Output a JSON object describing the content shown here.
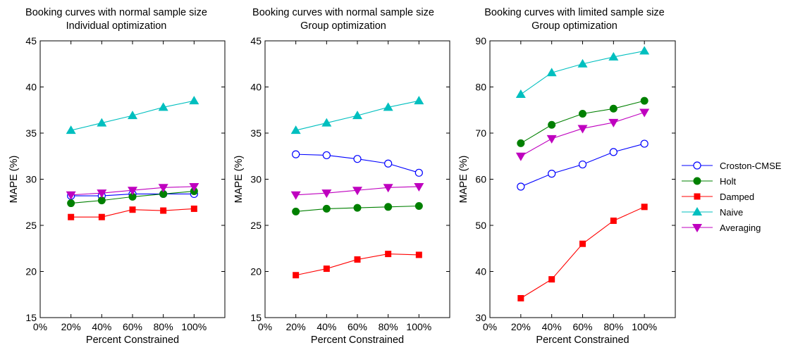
{
  "chart_data": [
    {
      "type": "line",
      "title": [
        "Booking curves with normal sample size",
        "Individual optimization"
      ],
      "xlabel": "Percent Constrained",
      "ylabel": "MAPE (%)",
      "x_ticks": [
        "0%",
        "20%",
        "40%",
        "60%",
        "80%",
        "100%"
      ],
      "x": [
        20,
        40,
        60,
        80,
        100
      ],
      "xlim": [
        0,
        120
      ],
      "ylim": [
        15,
        45
      ],
      "y_ticks": [
        15,
        20,
        25,
        30,
        35,
        40,
        45
      ],
      "series": [
        {
          "name": "Croston-CMSE",
          "values": [
            28.2,
            28.2,
            28.4,
            28.4,
            28.4
          ]
        },
        {
          "name": "Holt",
          "values": [
            27.4,
            27.7,
            28.1,
            28.4,
            28.7
          ]
        },
        {
          "name": "Damped",
          "values": [
            25.9,
            25.9,
            26.7,
            26.6,
            26.8
          ]
        },
        {
          "name": "Naive",
          "values": [
            35.3,
            36.1,
            36.9,
            37.8,
            38.5
          ]
        },
        {
          "name": "Averaging",
          "values": [
            28.3,
            28.5,
            28.8,
            29.1,
            29.2
          ]
        }
      ]
    },
    {
      "type": "line",
      "title": [
        "Booking curves with normal sample size",
        "Group optimization"
      ],
      "xlabel": "Percent Constrained",
      "ylabel": "MAPE (%)",
      "x_ticks": [
        "0%",
        "20%",
        "40%",
        "60%",
        "80%",
        "100%"
      ],
      "x": [
        20,
        40,
        60,
        80,
        100
      ],
      "xlim": [
        0,
        120
      ],
      "ylim": [
        15,
        45
      ],
      "y_ticks": [
        15,
        20,
        25,
        30,
        35,
        40,
        45
      ],
      "series": [
        {
          "name": "Croston-CMSE",
          "values": [
            32.7,
            32.6,
            32.2,
            31.7,
            30.7
          ]
        },
        {
          "name": "Holt",
          "values": [
            26.5,
            26.8,
            26.9,
            27.0,
            27.1
          ]
        },
        {
          "name": "Damped",
          "values": [
            19.6,
            20.3,
            21.3,
            21.9,
            21.8
          ]
        },
        {
          "name": "Naive",
          "values": [
            35.3,
            36.1,
            36.9,
            37.8,
            38.5
          ]
        },
        {
          "name": "Averaging",
          "values": [
            28.3,
            28.5,
            28.8,
            29.1,
            29.2
          ]
        }
      ]
    },
    {
      "type": "line",
      "title": [
        "Booking curves with limited sample size",
        "Group optimization"
      ],
      "xlabel": "Percent Constrained",
      "ylabel": "MAPE (%)",
      "x_ticks": [
        "0%",
        "20%",
        "40%",
        "60%",
        "80%",
        "100%"
      ],
      "x": [
        20,
        40,
        60,
        80,
        100
      ],
      "xlim": [
        0,
        120
      ],
      "ylim": [
        30,
        90
      ],
      "y_ticks": [
        30,
        40,
        50,
        60,
        70,
        80,
        90
      ],
      "series": [
        {
          "name": "Croston-CMSE",
          "values": [
            58.4,
            61.2,
            63.2,
            65.9,
            67.7
          ]
        },
        {
          "name": "Holt",
          "values": [
            67.8,
            71.8,
            74.2,
            75.3,
            77.0
          ]
        },
        {
          "name": "Damped",
          "values": [
            34.2,
            38.3,
            46.0,
            51.0,
            54.0
          ]
        },
        {
          "name": "Naive",
          "values": [
            78.4,
            83.1,
            85.0,
            86.5,
            87.8
          ]
        },
        {
          "name": "Averaging",
          "values": [
            65.0,
            68.8,
            71.0,
            72.3,
            74.5
          ]
        }
      ]
    }
  ],
  "legend": [
    {
      "name": "Croston-CMSE",
      "color": "#0000ff",
      "marker": "open-circle"
    },
    {
      "name": "Holt",
      "color": "#008000",
      "marker": "filled-circle"
    },
    {
      "name": "Damped",
      "color": "#ff0000",
      "marker": "filled-square"
    },
    {
      "name": "Naive",
      "color": "#00bfbf",
      "marker": "triangle-up"
    },
    {
      "name": "Averaging",
      "color": "#bf00bf",
      "marker": "triangle-down"
    }
  ]
}
